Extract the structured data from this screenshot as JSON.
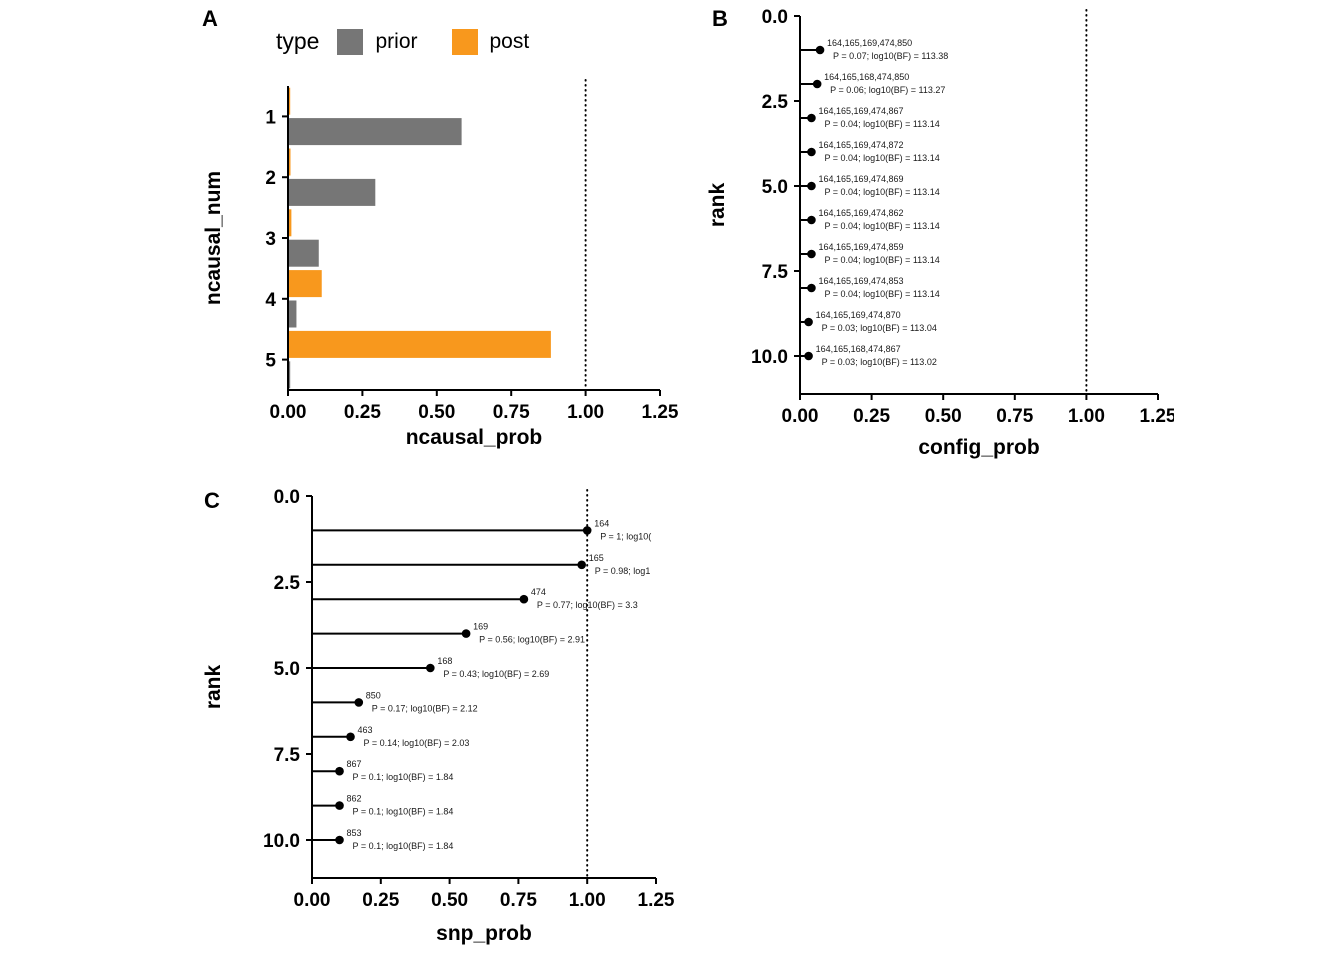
{
  "chart_data": [
    {
      "panel_label": "A",
      "type": "bar",
      "orientation": "horizontal",
      "xlabel": "ncausal_prob",
      "ylabel": "ncausal_num",
      "xlim": [
        0,
        1.25
      ],
      "xticks": [
        "0.00",
        "0.25",
        "0.50",
        "0.75",
        "1.00",
        "1.25"
      ],
      "categories": [
        "1",
        "2",
        "3",
        "4",
        "5"
      ],
      "series": [
        {
          "name": "prior",
          "color": "#767676",
          "values": [
            0.58,
            0.29,
            0.1,
            0.025,
            0.004
          ]
        },
        {
          "name": "post",
          "color": "#F8981D",
          "values": [
            0.004,
            0.005,
            0.008,
            0.11,
            0.88
          ]
        }
      ],
      "dodge_order": [
        "post",
        "prior"
      ],
      "refline_x": 1.0,
      "legend": {
        "title": "type",
        "position": "top",
        "labels": [
          "prior",
          "post"
        ]
      }
    },
    {
      "panel_label": "B",
      "type": "lollipop",
      "xlabel": "config_prob",
      "ylabel": "rank",
      "xlim": [
        0,
        1.25
      ],
      "xticks": [
        "0.00",
        "0.25",
        "0.50",
        "0.75",
        "1.00",
        "1.25"
      ],
      "ylim": [
        0,
        10
      ],
      "y_reversed": true,
      "yticks": [
        "0.0",
        "2.5",
        "5.0",
        "7.5",
        "10.0"
      ],
      "refline_x": 1.0,
      "points": [
        {
          "rank": 1,
          "value": 0.07,
          "label": "164,165,169,474,850",
          "annotation": "P = 0.07; log10(BF) = 113.38"
        },
        {
          "rank": 2,
          "value": 0.06,
          "label": "164,165,168,474,850",
          "annotation": "P = 0.06; log10(BF) = 113.27"
        },
        {
          "rank": 3,
          "value": 0.04,
          "label": "164,165,169,474,867",
          "annotation": "P = 0.04; log10(BF) = 113.14"
        },
        {
          "rank": 4,
          "value": 0.04,
          "label": "164,165,169,474,872",
          "annotation": "P = 0.04; log10(BF) = 113.14"
        },
        {
          "rank": 5,
          "value": 0.04,
          "label": "164,165,169,474,869",
          "annotation": "P = 0.04; log10(BF) = 113.14"
        },
        {
          "rank": 6,
          "value": 0.04,
          "label": "164,165,169,474,862",
          "annotation": "P = 0.04; log10(BF) = 113.14"
        },
        {
          "rank": 7,
          "value": 0.04,
          "label": "164,165,169,474,859",
          "annotation": "P = 0.04; log10(BF) = 113.14"
        },
        {
          "rank": 8,
          "value": 0.04,
          "label": "164,165,169,474,853",
          "annotation": "P = 0.04; log10(BF) = 113.14"
        },
        {
          "rank": 9,
          "value": 0.03,
          "label": "164,165,169,474,870",
          "annotation": "P = 0.03; log10(BF) = 113.04"
        },
        {
          "rank": 10,
          "value": 0.03,
          "label": "164,165,168,474,867",
          "annotation": "P = 0.03; log10(BF) = 113.02"
        }
      ]
    },
    {
      "panel_label": "C",
      "type": "lollipop",
      "xlabel": "snp_prob",
      "ylabel": "rank",
      "xlim": [
        0,
        1.25
      ],
      "xticks": [
        "0.00",
        "0.25",
        "0.50",
        "0.75",
        "1.00",
        "1.25"
      ],
      "ylim": [
        0,
        10
      ],
      "y_reversed": true,
      "yticks": [
        "0.0",
        "2.5",
        "5.0",
        "7.5",
        "10.0"
      ],
      "refline_x": 1.0,
      "points": [
        {
          "rank": 1,
          "value": 1.0,
          "label": "164",
          "annotation": "P = 1; log10("
        },
        {
          "rank": 2,
          "value": 0.98,
          "label": "165",
          "annotation": "P = 0.98; log1"
        },
        {
          "rank": 3,
          "value": 0.77,
          "label": "474",
          "annotation": "P = 0.77; log10(BF) = 3.3"
        },
        {
          "rank": 4,
          "value": 0.56,
          "label": "169",
          "annotation": "P = 0.56; log10(BF) = 2.91"
        },
        {
          "rank": 5,
          "value": 0.43,
          "label": "168",
          "annotation": "P = 0.43; log10(BF) = 2.69"
        },
        {
          "rank": 6,
          "value": 0.17,
          "label": "850",
          "annotation": "P = 0.17; log10(BF) = 2.12"
        },
        {
          "rank": 7,
          "value": 0.14,
          "label": "463",
          "annotation": "P = 0.14; log10(BF) = 2.03"
        },
        {
          "rank": 8,
          "value": 0.1,
          "label": "867",
          "annotation": "P = 0.1; log10(BF) = 1.84"
        },
        {
          "rank": 9,
          "value": 0.1,
          "label": "862",
          "annotation": "P = 0.1; log10(BF) = 1.84"
        },
        {
          "rank": 10,
          "value": 0.1,
          "label": "853",
          "annotation": "P = 0.1; log10(BF) = 1.84"
        }
      ]
    }
  ]
}
